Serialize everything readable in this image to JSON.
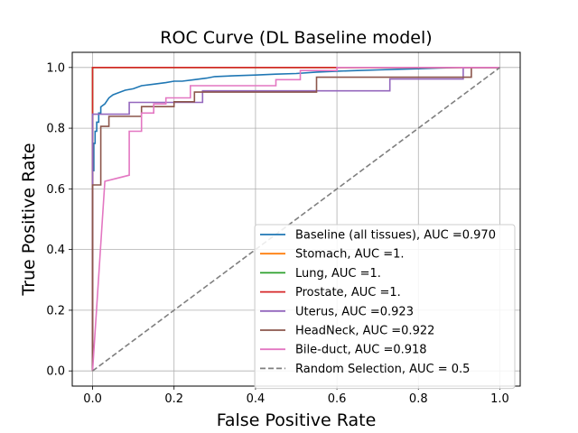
{
  "chart_data": {
    "type": "line",
    "title": "ROC Curve (DL Baseline model)",
    "xlabel": "False Positive Rate",
    "ylabel": "True Positive Rate",
    "xlim": [
      -0.05,
      1.05
    ],
    "ylim": [
      -0.05,
      1.05
    ],
    "xticks": [
      "0.0",
      "0.2",
      "0.4",
      "0.6",
      "0.8",
      "1.0"
    ],
    "yticks": [
      "0.0",
      "0.2",
      "0.4",
      "0.6",
      "0.8",
      "1.0"
    ],
    "grid": true,
    "legend_position": "lower-right",
    "series": [
      {
        "name": "Baseline (all tissues), AUC =0.970",
        "color": "#1f77b4",
        "x": [
          0,
          0,
          0.003,
          0.003,
          0.006,
          0.006,
          0.01,
          0.01,
          0.015,
          0.015,
          0.02,
          0.02,
          0.03,
          0.04,
          0.05,
          0.06,
          0.08,
          0.1,
          0.12,
          0.15,
          0.18,
          0.2,
          0.22,
          0.25,
          0.28,
          0.3,
          0.35,
          0.4,
          0.45,
          0.5,
          0.55,
          0.6,
          0.65,
          0.7,
          0.75,
          0.8,
          0.85,
          0.9,
          1.0
        ],
        "y": [
          0,
          0.66,
          0.66,
          0.75,
          0.75,
          0.79,
          0.79,
          0.82,
          0.82,
          0.85,
          0.85,
          0.87,
          0.88,
          0.9,
          0.91,
          0.915,
          0.925,
          0.93,
          0.94,
          0.945,
          0.95,
          0.955,
          0.955,
          0.96,
          0.965,
          0.97,
          0.973,
          0.975,
          0.978,
          0.98,
          0.985,
          0.988,
          0.99,
          0.992,
          0.994,
          0.996,
          0.998,
          1.0,
          1.0
        ]
      },
      {
        "name": "Stomach, AUC =1.",
        "color": "#ff7f0e",
        "x": [
          0,
          0,
          1
        ],
        "y": [
          0,
          1,
          1
        ]
      },
      {
        "name": "Lung, AUC =1.",
        "color": "#2ca02c",
        "x": [
          0,
          0,
          1
        ],
        "y": [
          0,
          1,
          1
        ]
      },
      {
        "name": "Prostate, AUC =1.",
        "color": "#d62728",
        "x": [
          0,
          0,
          1
        ],
        "y": [
          0,
          1,
          1
        ]
      },
      {
        "name": "Uterus, AUC =0.923",
        "color": "#9467bd",
        "x": [
          0,
          0,
          0.03,
          0.03,
          0.09,
          0.09,
          0.27,
          0.27,
          0.55,
          0.55,
          0.73,
          0.73,
          0.91,
          0.91,
          1.0
        ],
        "y": [
          0,
          0.846,
          0.846,
          0.846,
          0.846,
          0.885,
          0.885,
          0.923,
          0.923,
          0.923,
          0.923,
          0.962,
          0.962,
          1.0,
          1.0
        ]
      },
      {
        "name": "HeadNeck, AUC =0.922",
        "color": "#8c564b",
        "x": [
          0,
          0,
          0.02,
          0.02,
          0.04,
          0.04,
          0.12,
          0.12,
          0.2,
          0.2,
          0.25,
          0.25,
          0.55,
          0.55,
          0.93,
          0.93,
          1.0
        ],
        "y": [
          0,
          0.613,
          0.613,
          0.806,
          0.806,
          0.839,
          0.839,
          0.871,
          0.871,
          0.887,
          0.887,
          0.919,
          0.919,
          0.968,
          0.968,
          1.0,
          1.0
        ]
      },
      {
        "name": "Bile-duct, AUC =0.918",
        "color": "#e377c2",
        "x": [
          0,
          0.03,
          0.09,
          0.09,
          0.12,
          0.12,
          0.15,
          0.15,
          0.18,
          0.18,
          0.24,
          0.24,
          0.45,
          0.45,
          0.51,
          0.51,
          0.6,
          0.6,
          1.0
        ],
        "y": [
          0,
          0.625,
          0.645,
          0.79,
          0.79,
          0.85,
          0.85,
          0.88,
          0.88,
          0.9,
          0.9,
          0.94,
          0.94,
          0.96,
          0.96,
          0.99,
          0.99,
          1.0,
          1.0
        ]
      },
      {
        "name": "Random Selection, AUC = 0.5",
        "color": "#7f7f7f",
        "dashed": true,
        "x": [
          0,
          1
        ],
        "y": [
          0,
          1
        ]
      }
    ]
  }
}
